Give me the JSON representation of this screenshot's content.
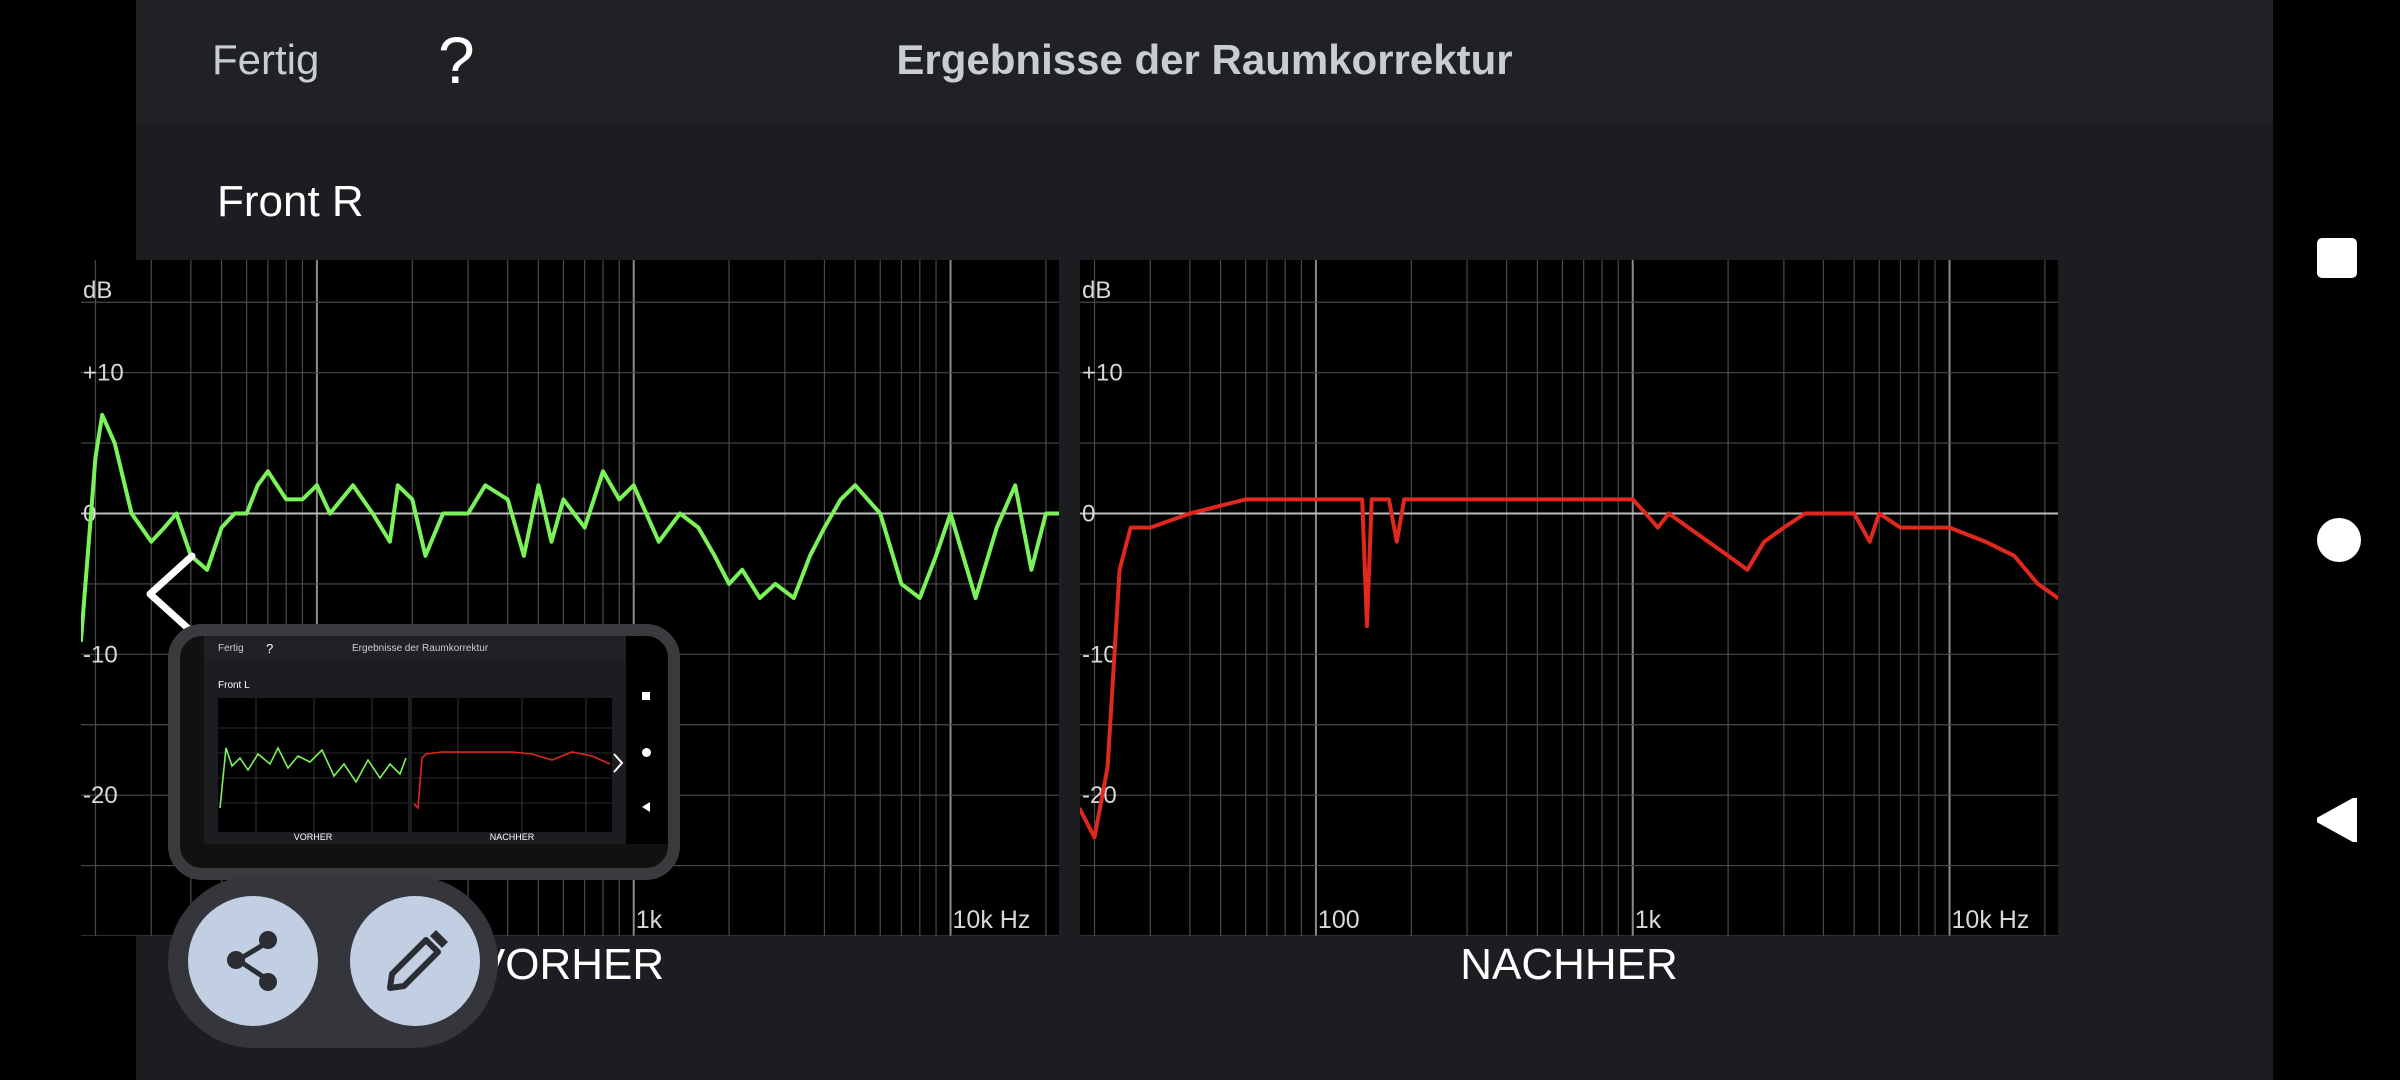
{
  "header": {
    "done_label": "Fertig",
    "help_label": "?",
    "title": "Ergebnisse der Raumkorrektur"
  },
  "channel_label": "Front R",
  "colors": {
    "before_curve": "#7cf25a",
    "after_curve": "#e0281e",
    "background": "#1c1d20"
  },
  "icons": {
    "share": "share-icon",
    "edit": "pencil-icon",
    "back": "chevron-left-icon",
    "nav_recents": "square-icon",
    "nav_home": "circle-icon",
    "nav_back": "triangle-back-icon"
  },
  "thumbnail": {
    "done_label": "Fertig",
    "help_label": "?",
    "title": "Ergebnisse der Raumkorrektur",
    "channel_label": "Front L",
    "before_caption": "VORHER",
    "after_caption": "NACHHER"
  },
  "chart_data": [
    {
      "type": "line",
      "caption": "VORHER",
      "ylabel": "dB",
      "y_ticks": [
        "+10",
        "0",
        "-10",
        "-20"
      ],
      "x_ticks": [
        "100",
        "1k",
        "10k Hz"
      ],
      "x_scale": "log",
      "xlim": [
        18,
        22000
      ],
      "ylim": [
        -30,
        18
      ],
      "grid": true,
      "series": [
        {
          "points": [
            [
              18,
              -9
            ],
            [
              20,
              4
            ],
            [
              21,
              7
            ],
            [
              23,
              5
            ],
            [
              26,
              0
            ],
            [
              30,
              -2
            ],
            [
              33,
              -1
            ],
            [
              36,
              0
            ],
            [
              40,
              -3
            ],
            [
              45,
              -4
            ],
            [
              50,
              -1
            ],
            [
              55,
              0
            ],
            [
              60,
              0
            ],
            [
              65,
              2
            ],
            [
              70,
              3
            ],
            [
              80,
              1
            ],
            [
              90,
              1
            ],
            [
              100,
              2
            ],
            [
              110,
              0
            ],
            [
              130,
              2
            ],
            [
              150,
              0
            ],
            [
              170,
              -2
            ],
            [
              180,
              2
            ],
            [
              200,
              1
            ],
            [
              220,
              -3
            ],
            [
              250,
              0
            ],
            [
              300,
              0
            ],
            [
              340,
              2
            ],
            [
              400,
              1
            ],
            [
              450,
              -3
            ],
            [
              500,
              2
            ],
            [
              550,
              -2
            ],
            [
              600,
              1
            ],
            [
              700,
              -1
            ],
            [
              800,
              3
            ],
            [
              900,
              1
            ],
            [
              1000,
              2
            ],
            [
              1200,
              -2
            ],
            [
              1400,
              0
            ],
            [
              1600,
              -1
            ],
            [
              1800,
              -3
            ],
            [
              2000,
              -5
            ],
            [
              2200,
              -4
            ],
            [
              2500,
              -6
            ],
            [
              2800,
              -5
            ],
            [
              3200,
              -6
            ],
            [
              3600,
              -3
            ],
            [
              4000,
              -1
            ],
            [
              4500,
              1
            ],
            [
              5000,
              2
            ],
            [
              6000,
              0
            ],
            [
              7000,
              -5
            ],
            [
              8000,
              -6
            ],
            [
              9000,
              -3
            ],
            [
              10000,
              0
            ],
            [
              12000,
              -6
            ],
            [
              14000,
              -1
            ],
            [
              16000,
              2
            ],
            [
              18000,
              -4
            ],
            [
              20000,
              0
            ],
            [
              22000,
              0
            ]
          ]
        }
      ],
      "annotations": [
        "Linie teilweise durch Vorschaubild verdeckt"
      ]
    },
    {
      "type": "line",
      "caption": "NACHHER",
      "ylabel": "dB",
      "y_ticks": [
        "+10",
        "0",
        "-10",
        "-20"
      ],
      "x_ticks": [
        "100",
        "1k",
        "10k Hz"
      ],
      "x_scale": "log",
      "xlim": [
        18,
        22000
      ],
      "ylim": [
        -30,
        18
      ],
      "grid": true,
      "series": [
        {
          "points": [
            [
              18,
              -21
            ],
            [
              20,
              -23
            ],
            [
              22,
              -18
            ],
            [
              24,
              -4
            ],
            [
              26,
              -1
            ],
            [
              30,
              -1
            ],
            [
              40,
              0
            ],
            [
              60,
              1
            ],
            [
              100,
              1
            ],
            [
              140,
              1
            ],
            [
              145,
              -8
            ],
            [
              150,
              1
            ],
            [
              170,
              1
            ],
            [
              180,
              -2
            ],
            [
              190,
              1
            ],
            [
              200,
              1
            ],
            [
              300,
              1
            ],
            [
              500,
              1
            ],
            [
              800,
              1
            ],
            [
              1000,
              1
            ],
            [
              1100,
              0
            ],
            [
              1200,
              -1
            ],
            [
              1300,
              0
            ],
            [
              1500,
              -1
            ],
            [
              2000,
              -3
            ],
            [
              2300,
              -4
            ],
            [
              2600,
              -2
            ],
            [
              3000,
              -1
            ],
            [
              3500,
              0
            ],
            [
              5000,
              0
            ],
            [
              5600,
              -2
            ],
            [
              6000,
              0
            ],
            [
              7000,
              -1
            ],
            [
              8000,
              -1
            ],
            [
              10000,
              -1
            ],
            [
              13000,
              -2
            ],
            [
              16000,
              -3
            ],
            [
              19000,
              -5
            ],
            [
              22000,
              -6
            ]
          ]
        }
      ]
    }
  ]
}
